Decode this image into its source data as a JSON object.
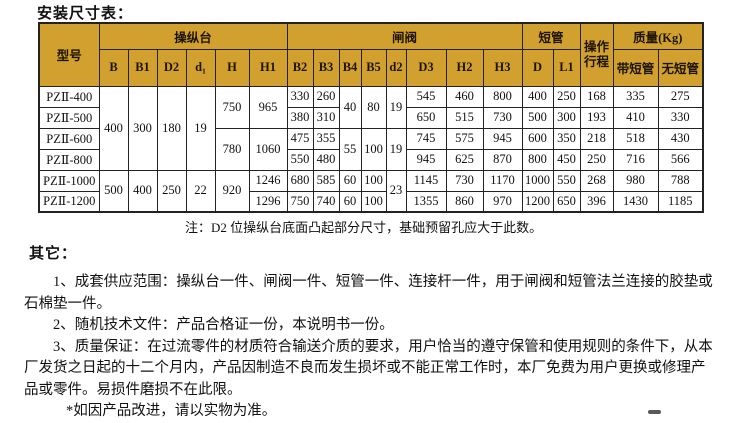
{
  "page": {
    "title": "安装尺寸表：",
    "note": "注：D2 位操纵台底面凸起部分尺寸，基础预留孔应大于此数。",
    "others_heading": "其它：",
    "paragraphs": [
      "1、成套供应范围：操纵台一件、闸阀一件、短管一件、连接杆一件，用于闸阀和短管法兰连接的胶垫或石棉垫一件。",
      "2、随机技术文件：产品合格证一份，本说明书一份。",
      "3、质量保证：在过流零件的材质符合输送介质的要求，用户恰当的遵守保管和使用规则的条件下，从本厂发货之日起的十二个月内，产品因制造不良而发生损坏或不能正常工作时，本厂免费为用户更换或修理产品或零件。易损件磨损不在此限。",
      "*如因产品改进，请以实物为准。"
    ]
  },
  "table": {
    "header": {
      "model": "型号",
      "groups": [
        {
          "label": "操纵台",
          "cols": [
            "B",
            "B1",
            "D2",
            "d₁",
            "H",
            "H1"
          ]
        },
        {
          "label": "闸阀",
          "cols": [
            "B2",
            "B3",
            "B4",
            "B5",
            "d2",
            "D3",
            "H2",
            "H3"
          ]
        },
        {
          "label": "短管",
          "cols": [
            "D",
            "L1"
          ]
        },
        {
          "label": "操作\n行程"
        },
        {
          "label": "质量(Kg)",
          "cols": [
            "带短管",
            "无短管"
          ]
        }
      ]
    },
    "body": [
      [
        "PZⅡ-400",
        [
          "400",
          4
        ],
        [
          "300",
          4
        ],
        [
          "180",
          4
        ],
        [
          "19",
          4
        ],
        [
          "750",
          2
        ],
        [
          "965",
          2
        ],
        "330",
        "260",
        [
          "40",
          2
        ],
        [
          "80",
          2
        ],
        [
          "19",
          2
        ],
        "545",
        "460",
        "800",
        "400",
        "250",
        "168",
        "335",
        "275"
      ],
      [
        "PZⅡ-500",
        "380",
        "310",
        "650",
        "515",
        "730",
        "500",
        "300",
        "193",
        "410",
        "330"
      ],
      [
        "PZⅡ-600",
        [
          "780",
          2
        ],
        [
          "1060",
          2
        ],
        "475",
        "355",
        [
          "55",
          2
        ],
        [
          "100",
          2
        ],
        [
          "19",
          2
        ],
        "745",
        "575",
        "945",
        "600",
        "350",
        "218",
        "518",
        "430"
      ],
      [
        "PZⅡ-800",
        "550",
        "480",
        "945",
        "625",
        "870",
        "800",
        "450",
        "250",
        "716",
        "566"
      ],
      [
        "PZⅡ-1000",
        [
          "500",
          2
        ],
        [
          "400",
          2
        ],
        [
          "250",
          2
        ],
        [
          "22",
          2
        ],
        [
          "920",
          2
        ],
        "1246",
        "680",
        "585",
        "60",
        "100",
        [
          "23",
          2
        ],
        "1145",
        "730",
        "1170",
        "1000",
        "550",
        "268",
        "980",
        "788"
      ],
      [
        "PZⅡ-1200",
        "1296",
        "750",
        "740",
        "60",
        "100",
        "1355",
        "860",
        "970",
        "1200",
        "650",
        "396",
        "1430",
        "1185"
      ]
    ]
  },
  "colors": {
    "header_bg": "#d1a02f",
    "border_color": "#222222",
    "page_bg": "#ffffff"
  }
}
